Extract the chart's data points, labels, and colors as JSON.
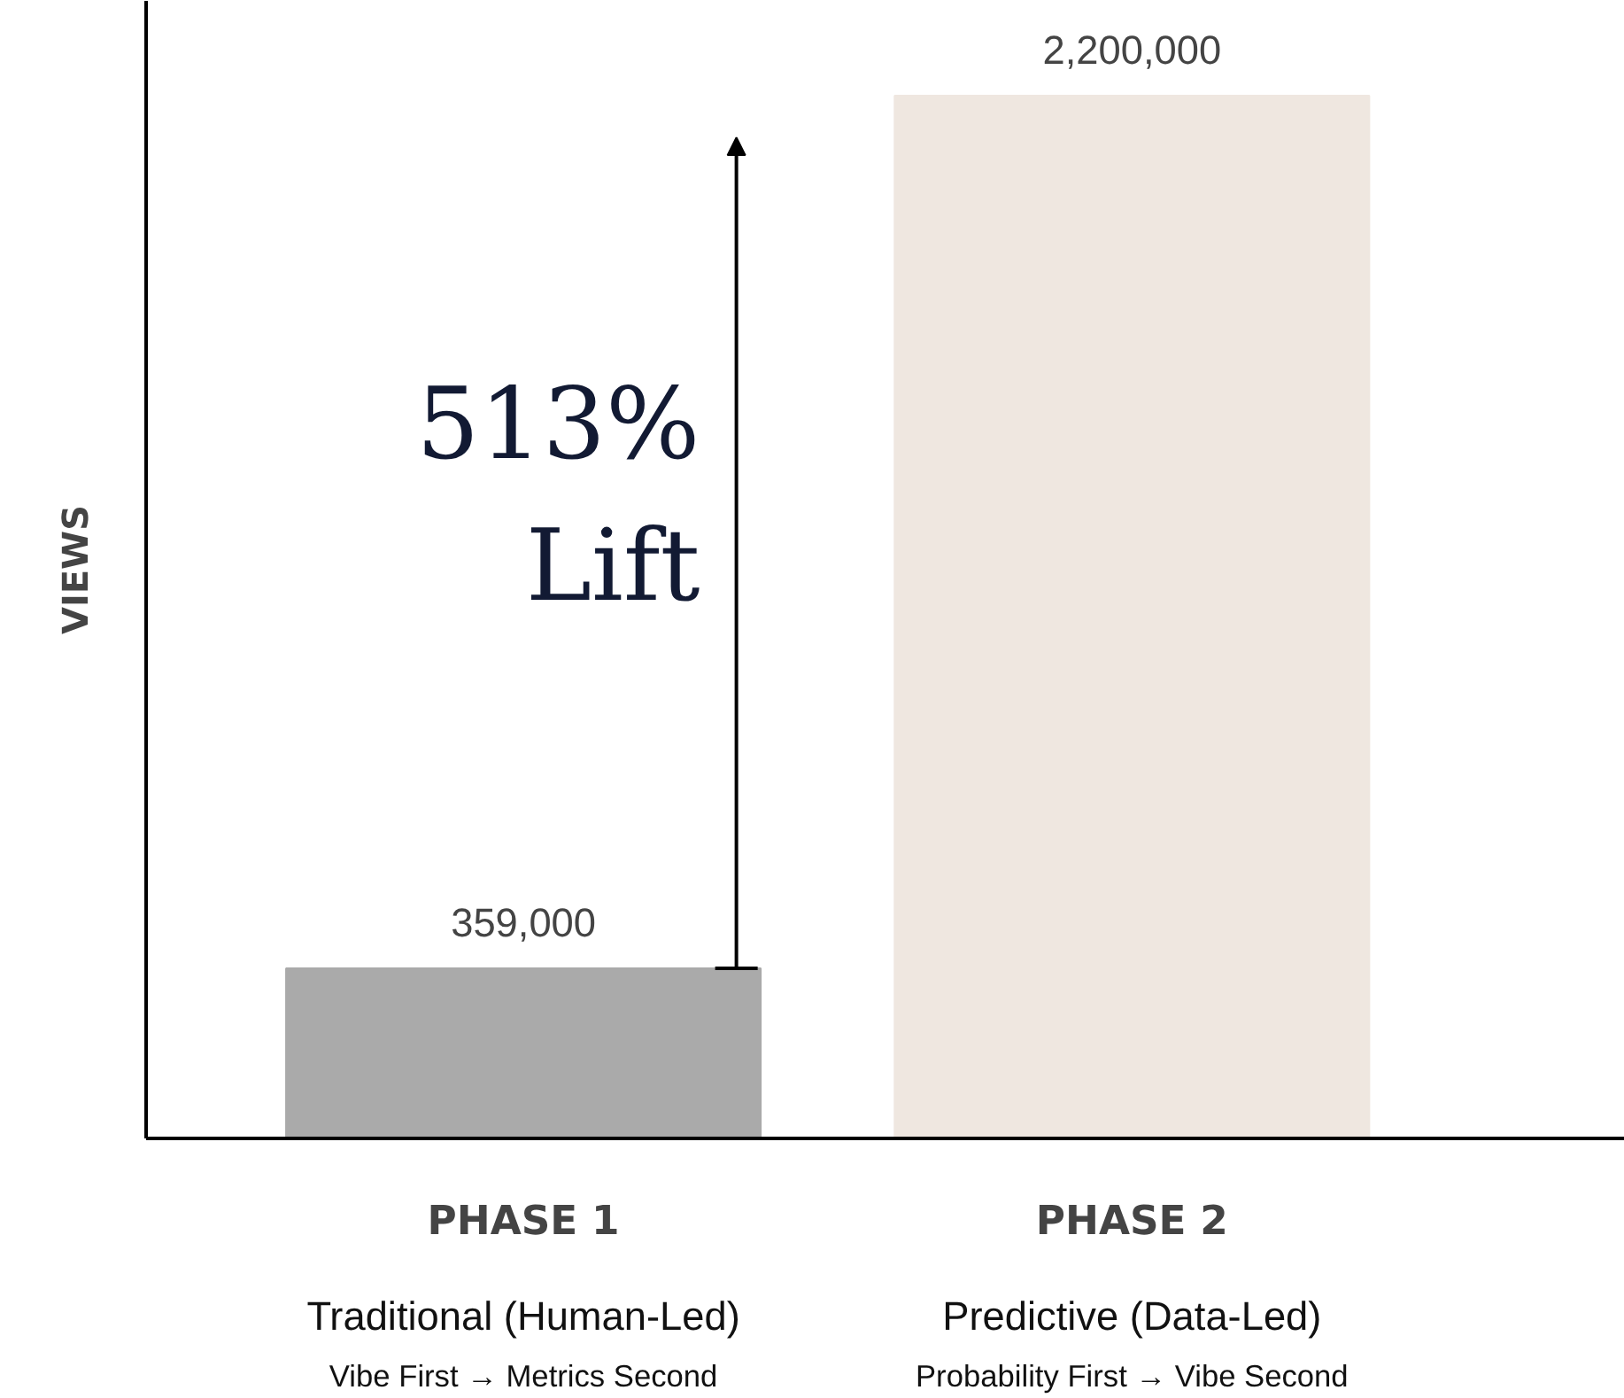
{
  "chart_data": {
    "type": "bar",
    "ylabel": "VIEWS",
    "categories": [
      "PHASE 1",
      "PHASE 2"
    ],
    "values": [
      359000,
      2200000
    ],
    "colors": [
      "#aaaaaa",
      "#efe7e0"
    ],
    "value_labels": [
      "359,000",
      "2,200,000"
    ],
    "ylim": [
      0,
      2400000
    ],
    "tick_labels": "x",
    "grid": false,
    "annotations": [
      "513% Lift",
      "Traditional (Human-Led)",
      "Vibe First → Metrics Second",
      "Predictive (Data-Led)",
      "Probability First → Vibe Second"
    ]
  }
}
